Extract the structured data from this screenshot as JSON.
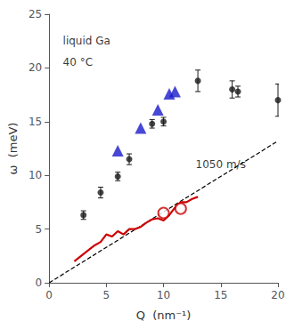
{
  "chart_data": {
    "type": "scatter",
    "xlabel": "Q  (nm⁻¹)",
    "ylabel": "ω  (meV)",
    "xlim": [
      0,
      20
    ],
    "ylim": [
      0,
      25
    ],
    "xticks": [
      0,
      5,
      10,
      15,
      20
    ],
    "yticks": [
      0,
      5,
      10,
      15,
      20,
      25
    ],
    "grid": false,
    "series": [
      {
        "type": "line",
        "line_style": "dashed",
        "color": "black",
        "x": [
          0,
          20
        ],
        "values": [
          0,
          13.2
        ]
      },
      {
        "type": "line",
        "line_style": "solid",
        "color": "#cc0000",
        "x": [
          2.2,
          3.5,
          4.0,
          4.5,
          5.0,
          5.5,
          6.0,
          6.5,
          7.0,
          7.5,
          8.0,
          8.5,
          9.0,
          9.5,
          10.0,
          10.5,
          11.0,
          11.5,
          12.0,
          12.5,
          13.0
        ],
        "values": [
          2.0,
          3.1,
          3.5,
          3.8,
          4.5,
          4.3,
          4.8,
          4.5,
          5.0,
          5.0,
          5.2,
          5.6,
          5.9,
          6.0,
          5.8,
          6.3,
          7.0,
          7.5,
          7.5,
          7.8,
          8.0
        ]
      },
      {
        "type": "scatter",
        "marker": "open_circle",
        "color": "#cc0000",
        "x": [
          10.0,
          11.5
        ],
        "values": [
          6.5,
          6.9
        ]
      },
      {
        "type": "scatter",
        "marker": "circle",
        "color": "#1a1a1a",
        "x": [
          3.0,
          4.5,
          6.0,
          7.0,
          9.0,
          10.0,
          13.0,
          16.0,
          16.5,
          20.0
        ],
        "values": [
          6.3,
          8.4,
          9.9,
          11.5,
          14.8,
          15.0,
          18.8,
          18.0,
          17.8,
          17.0
        ],
        "yerr": [
          0.4,
          0.5,
          0.4,
          0.5,
          0.4,
          0.4,
          1.0,
          0.8,
          0.5,
          1.5
        ]
      },
      {
        "type": "scatter",
        "marker": "triangle",
        "color": "#1a1acc",
        "x": [
          6.0,
          8.0,
          9.5,
          10.5,
          11.0
        ],
        "values": [
          12.3,
          14.4,
          16.1,
          17.6,
          17.8
        ]
      }
    ],
    "annotations": [
      {
        "text": "1050 m/s",
        "x": 12.8,
        "y": 10.5
      },
      {
        "text": "liquid Ga",
        "x": 1.2,
        "y": 22.0
      },
      {
        "text": "40 °C",
        "x": 1.2,
        "y": 20.0
      }
    ]
  }
}
